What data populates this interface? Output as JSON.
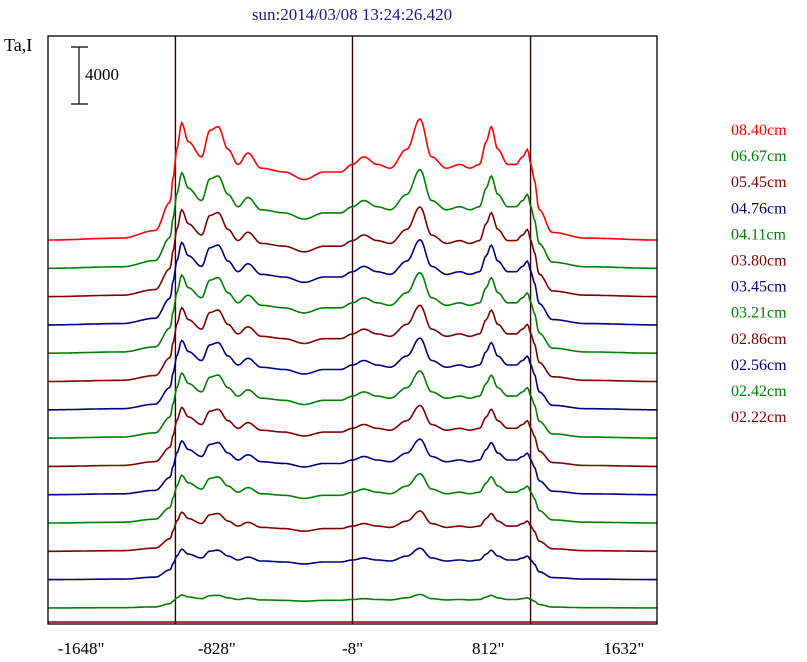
{
  "chart_data": {
    "type": "line",
    "title": "sun:2014/03/08 13:24:26.420",
    "ylabel": "Ta,I",
    "scale_bar_label": "4000",
    "xlim": [
      -1848,
      1832
    ],
    "x_ticks": [
      -1648,
      -828,
      -8,
      812,
      1632
    ],
    "x_tick_labels": [
      "-1648\"",
      "-828\"",
      "-8\"",
      "812\"",
      "1632\""
    ],
    "vertical_lines": [
      -1078,
      -8,
      1068
    ],
    "colors": {
      "red": "#ff0000",
      "green": "#008000",
      "maroon": "#800000",
      "navy": "#000080"
    },
    "series": [
      {
        "name": "08.40cm",
        "color": "red",
        "peak_scale": 1.35
      },
      {
        "name": "06.67cm",
        "color": "green",
        "peak_scale": 1.1
      },
      {
        "name": "05.45cm",
        "color": "maroon",
        "peak_scale": 1.0
      },
      {
        "name": "04.76cm",
        "color": "navy",
        "peak_scale": 0.95
      },
      {
        "name": "04.11cm",
        "color": "green",
        "peak_scale": 0.9
      },
      {
        "name": "03.80cm",
        "color": "maroon",
        "peak_scale": 0.85
      },
      {
        "name": "03.45cm",
        "color": "navy",
        "peak_scale": 0.8
      },
      {
        "name": "03.21cm",
        "color": "green",
        "peak_scale": 0.75
      },
      {
        "name": "02.86cm",
        "color": "maroon",
        "peak_scale": 0.68
      },
      {
        "name": "02.56cm",
        "color": "navy",
        "peak_scale": 0.62
      },
      {
        "name": "02.42cm",
        "color": "green",
        "peak_scale": 0.55
      },
      {
        "name": "02.22cm",
        "color": "maroon",
        "peak_scale": 0.45
      }
    ],
    "extra_traces": [
      {
        "color": "navy",
        "peak_scale": 0.35
      },
      {
        "color": "green",
        "peak_scale": 0.15
      },
      {
        "color": "maroon",
        "peak_scale": 0.05
      }
    ],
    "profile": {
      "x": [
        -1848,
        -1400,
        -1200,
        -1110,
        -1090,
        -1070,
        -1040,
        -1000,
        -920,
        -870,
        -820,
        -760,
        -700,
        -640,
        -560,
        -420,
        -300,
        -180,
        -80,
        -8,
        60,
        140,
        220,
        320,
        400,
        470,
        560,
        640,
        700,
        760,
        800,
        830,
        870,
        930,
        980,
        1020,
        1050,
        1070,
        1090,
        1120,
        1200,
        1400,
        1832
      ],
      "y": [
        0,
        0.05,
        0.25,
        1.0,
        1.7,
        2.4,
        3.1,
        2.6,
        2.2,
        2.9,
        3.0,
        2.4,
        2.0,
        2.3,
        1.9,
        1.8,
        1.6,
        1.8,
        1.8,
        2.0,
        2.2,
        2.0,
        1.9,
        2.4,
        3.2,
        2.2,
        1.9,
        2.0,
        1.9,
        2.0,
        2.6,
        3.0,
        2.4,
        2.0,
        2.0,
        2.2,
        2.4,
        2.0,
        1.6,
        0.8,
        0.2,
        0.05,
        0
      ]
    }
  }
}
